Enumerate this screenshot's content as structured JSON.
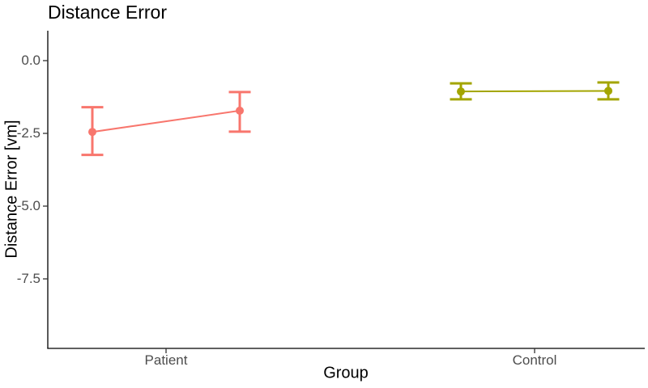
{
  "chart_data": {
    "type": "line",
    "title": "Distance Error",
    "xlabel": "Group",
    "ylabel": "Distance Error [vm]",
    "categories": [
      "Patient",
      "Control"
    ],
    "y_ticks": [
      0,
      -2.5,
      -5,
      -7.5
    ],
    "y_tick_labels": [
      "0.0",
      "-2.5",
      "-5.0",
      "-7.5"
    ],
    "ylim": [
      -9.9,
      1.0
    ],
    "grid": false,
    "legend": "none",
    "colors": {
      "axis_line": "#000000",
      "tick_mark": "#333333",
      "axis_text": "#4d4d4d",
      "title_text": "#000000"
    },
    "series": [
      {
        "name": "Patient",
        "color": "#F8766D",
        "points": [
          {
            "y": -2.45,
            "ymin": -3.24,
            "ymax": -1.6
          },
          {
            "y": -1.72,
            "ymin": -2.44,
            "ymax": -1.08
          }
        ]
      },
      {
        "name": "Control",
        "color": "#A3A500",
        "points": [
          {
            "y": -1.06,
            "ymin": -1.33,
            "ymax": -0.78
          },
          {
            "y": -1.04,
            "ymin": -1.33,
            "ymax": -0.75
          }
        ]
      }
    ]
  }
}
